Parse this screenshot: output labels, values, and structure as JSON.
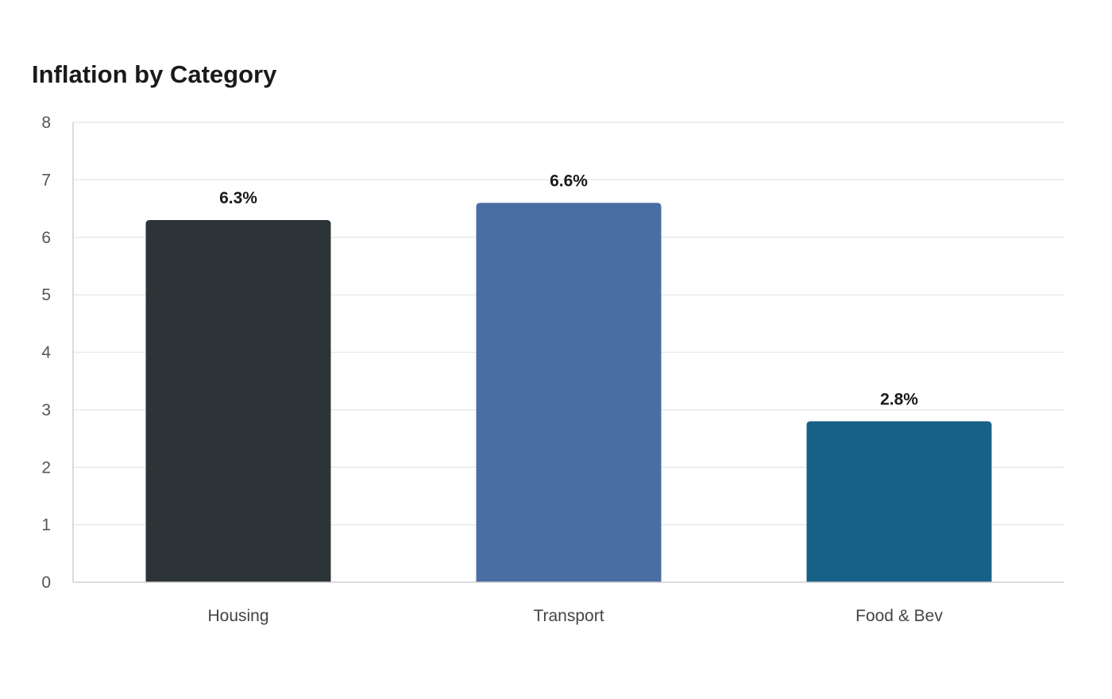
{
  "chart_data": {
    "type": "bar",
    "title": "Inflation by Category",
    "xlabel": "",
    "ylabel": "",
    "categories": [
      "Housing",
      "Transport",
      "Food & Bev"
    ],
    "values": [
      6.3,
      6.6,
      2.8
    ],
    "value_labels": [
      "6.3%",
      "6.6%",
      "2.8%"
    ],
    "colors": [
      "#2d3437",
      "#4a6da3",
      "#176187"
    ],
    "ylim": [
      0,
      8
    ],
    "yticks": [
      0,
      1,
      2,
      3,
      4,
      5,
      6,
      7,
      8
    ],
    "grid": true,
    "legend": "none"
  }
}
